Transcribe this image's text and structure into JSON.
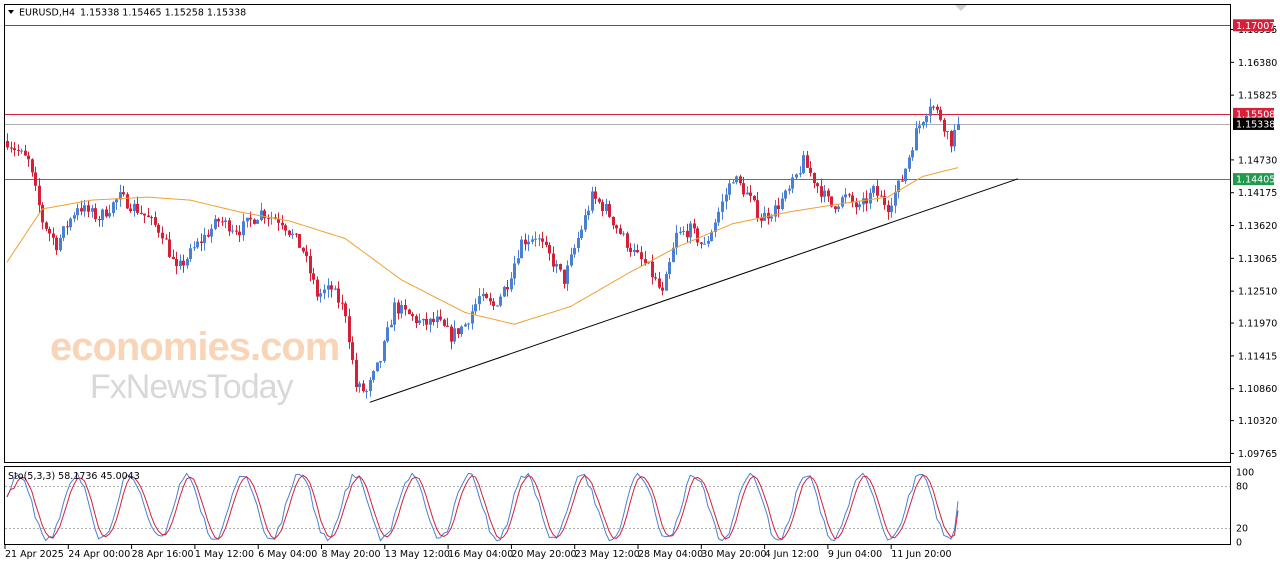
{
  "header": {
    "symbol": "EURUSD,H4",
    "ohlc": "1.15338 1.15465 1.15258 1.15338",
    "indicator_label": "Sto(5,3,3) 58.1736 45.0043"
  },
  "watermark": {
    "line1": "economies.com",
    "line2": "FxNewsToday"
  },
  "price_axis": {
    "ticks": [
      "1.16935",
      "1.16380",
      "1.15825",
      "1.14730",
      "1.14175",
      "1.13620",
      "1.13065",
      "1.12510",
      "1.11970",
      "1.11415",
      "1.10860",
      "1.10320",
      "1.09765"
    ],
    "badges": [
      {
        "label": "1.17007",
        "value": 1.17007,
        "color": "#d6203a",
        "kind": "line"
      },
      {
        "label": "1.15508",
        "value": 1.15508,
        "color": "#d6203a",
        "kind": "line"
      },
      {
        "label": "1.15338",
        "value": 1.15338,
        "color": "#000000",
        "kind": "bid"
      },
      {
        "label": "1.14405",
        "value": 1.14405,
        "color": "#1f9a4f",
        "kind": "line"
      }
    ]
  },
  "stoch_axis": {
    "ticks": [
      "100",
      "80",
      "20",
      "0"
    ]
  },
  "time_axis": {
    "labels": [
      "21 Apr 2025",
      "24 Apr 00:00",
      "28 Apr 16:00",
      "1 May 12:00",
      "6 May 04:00",
      "8 May 20:00",
      "13 May 12:00",
      "16 May 04:00",
      "20 May 20:00",
      "23 May 12:00",
      "28 May 04:00",
      "30 May 20:00",
      "4 Jun 12:00",
      "9 Jun 04:00",
      "11 Jun 20:00"
    ]
  },
  "colors": {
    "bull": "#4a7fd6",
    "bear": "#d6203a",
    "ma": "#f0a030",
    "trend": "#000000",
    "stoch_main": "#4a7fd6",
    "stoch_signal": "#d6203a"
  },
  "chart_data": {
    "type": "candlestick",
    "symbol": "EURUSD",
    "timeframe": "H4",
    "ylim": [
      1.0962,
      1.1735
    ],
    "last_ohlc": {
      "open": 1.15338,
      "high": 1.15465,
      "low": 1.15258,
      "close": 1.15338
    },
    "path_points": [
      {
        "t": 0,
        "p": 1.1505
      },
      {
        "t": 6,
        "p": 1.147
      },
      {
        "t": 10,
        "p": 1.137
      },
      {
        "t": 14,
        "p": 1.133
      },
      {
        "t": 20,
        "p": 1.1395
      },
      {
        "t": 26,
        "p": 1.1375
      },
      {
        "t": 32,
        "p": 1.141
      },
      {
        "t": 38,
        "p": 1.1385
      },
      {
        "t": 44,
        "p": 1.135
      },
      {
        "t": 48,
        "p": 1.1285
      },
      {
        "t": 54,
        "p": 1.133
      },
      {
        "t": 60,
        "p": 1.137
      },
      {
        "t": 66,
        "p": 1.1355
      },
      {
        "t": 72,
        "p": 1.1385
      },
      {
        "t": 78,
        "p": 1.137
      },
      {
        "t": 84,
        "p": 1.132
      },
      {
        "t": 88,
        "p": 1.1245
      },
      {
        "t": 92,
        "p": 1.1255
      },
      {
        "t": 96,
        "p": 1.1215
      },
      {
        "t": 99,
        "p": 1.109
      },
      {
        "t": 102,
        "p": 1.108
      },
      {
        "t": 106,
        "p": 1.1135
      },
      {
        "t": 110,
        "p": 1.1225
      },
      {
        "t": 114,
        "p": 1.121
      },
      {
        "t": 118,
        "p": 1.1195
      },
      {
        "t": 122,
        "p": 1.12
      },
      {
        "t": 126,
        "p": 1.1175
      },
      {
        "t": 130,
        "p": 1.1195
      },
      {
        "t": 134,
        "p": 1.124
      },
      {
        "t": 138,
        "p": 1.1225
      },
      {
        "t": 142,
        "p": 1.1265
      },
      {
        "t": 146,
        "p": 1.1335
      },
      {
        "t": 150,
        "p": 1.1345
      },
      {
        "t": 154,
        "p": 1.131
      },
      {
        "t": 158,
        "p": 1.127
      },
      {
        "t": 162,
        "p": 1.134
      },
      {
        "t": 166,
        "p": 1.141
      },
      {
        "t": 170,
        "p": 1.139
      },
      {
        "t": 174,
        "p": 1.135
      },
      {
        "t": 178,
        "p": 1.1315
      },
      {
        "t": 182,
        "p": 1.129
      },
      {
        "t": 186,
        "p": 1.1245
      },
      {
        "t": 190,
        "p": 1.1345
      },
      {
        "t": 194,
        "p": 1.1355
      },
      {
        "t": 198,
        "p": 1.1325
      },
      {
        "t": 202,
        "p": 1.1385
      },
      {
        "t": 206,
        "p": 1.1445
      },
      {
        "t": 210,
        "p": 1.1415
      },
      {
        "t": 214,
        "p": 1.1375
      },
      {
        "t": 218,
        "p": 1.139
      },
      {
        "t": 222,
        "p": 1.142
      },
      {
        "t": 226,
        "p": 1.147
      },
      {
        "t": 230,
        "p": 1.143
      },
      {
        "t": 234,
        "p": 1.1395
      },
      {
        "t": 238,
        "p": 1.141
      },
      {
        "t": 242,
        "p": 1.139
      },
      {
        "t": 246,
        "p": 1.142
      },
      {
        "t": 250,
        "p": 1.1395
      },
      {
        "t": 254,
        "p": 1.144
      },
      {
        "t": 258,
        "p": 1.152
      },
      {
        "t": 262,
        "p": 1.157
      },
      {
        "t": 265,
        "p": 1.1545
      },
      {
        "t": 268,
        "p": 1.1505
      },
      {
        "t": 270,
        "p": 1.1534
      }
    ],
    "moving_average": [
      {
        "t": 0,
        "p": 1.13
      },
      {
        "t": 10,
        "p": 1.139
      },
      {
        "t": 24,
        "p": 1.1405
      },
      {
        "t": 40,
        "p": 1.141
      },
      {
        "t": 52,
        "p": 1.1405
      },
      {
        "t": 66,
        "p": 1.1385
      },
      {
        "t": 80,
        "p": 1.137
      },
      {
        "t": 96,
        "p": 1.134
      },
      {
        "t": 112,
        "p": 1.127
      },
      {
        "t": 130,
        "p": 1.1215
      },
      {
        "t": 144,
        "p": 1.1195
      },
      {
        "t": 160,
        "p": 1.1225
      },
      {
        "t": 176,
        "p": 1.128
      },
      {
        "t": 190,
        "p": 1.1325
      },
      {
        "t": 206,
        "p": 1.1365
      },
      {
        "t": 222,
        "p": 1.1385
      },
      {
        "t": 238,
        "p": 1.14
      },
      {
        "t": 250,
        "p": 1.141
      },
      {
        "t": 260,
        "p": 1.1445
      },
      {
        "t": 270,
        "p": 1.146
      }
    ],
    "trendline": {
      "t1": 103,
      "p1": 1.1063,
      "t2": 287,
      "p2": 1.1441
    },
    "horizontal_levels": [
      1.17007,
      1.15508,
      1.14405
    ],
    "stochastic": {
      "k": 58.1736,
      "d": 45.0043,
      "levels": [
        80,
        20
      ]
    }
  }
}
